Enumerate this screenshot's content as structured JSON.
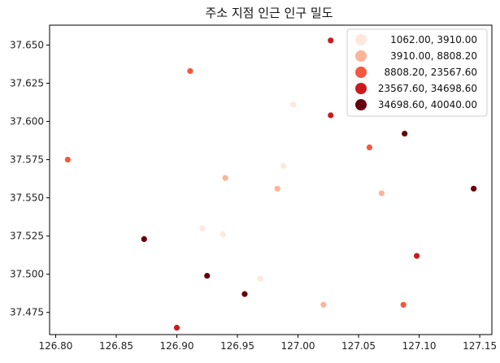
{
  "chart_data": {
    "type": "scatter",
    "title": "주소 지점 인근 인구 밀도",
    "xlabel": "",
    "ylabel": "",
    "xlim": [
      126.795,
      127.16
    ],
    "ylim": [
      37.4605,
      37.663
    ],
    "x_ticks": [
      "126.80",
      "126.85",
      "126.90",
      "126.95",
      "127.00",
      "127.05",
      "127.10",
      "127.15"
    ],
    "y_ticks": [
      "37.475",
      "37.500",
      "37.525",
      "37.550",
      "37.575",
      "37.600",
      "37.625",
      "37.650"
    ],
    "grid": false,
    "legend_position": "top-right",
    "legend": [
      {
        "label": "1062.00,   3910.00",
        "color": "#fee7dc"
      },
      {
        "label": "3910.00,   8808.20",
        "color": "#fcb499"
      },
      {
        "label": "8808.20, 23567.60",
        "color": "#f6573e"
      },
      {
        "label": "23567.60, 34698.60",
        "color": "#cb1b1e"
      },
      {
        "label": "34698.60, 40040.00",
        "color": "#67000d"
      }
    ],
    "points": [
      {
        "x": 127.027,
        "y": 37.653,
        "cls": 3
      },
      {
        "x": 126.911,
        "y": 37.633,
        "cls": 2
      },
      {
        "x": 126.996,
        "y": 37.611,
        "cls": 0
      },
      {
        "x": 127.027,
        "y": 37.604,
        "cls": 3
      },
      {
        "x": 127.088,
        "y": 37.592,
        "cls": 4
      },
      {
        "x": 127.059,
        "y": 37.583,
        "cls": 2
      },
      {
        "x": 126.81,
        "y": 37.575,
        "cls": 2
      },
      {
        "x": 126.988,
        "y": 37.571,
        "cls": 0
      },
      {
        "x": 126.94,
        "y": 37.563,
        "cls": 1
      },
      {
        "x": 126.983,
        "y": 37.556,
        "cls": 1
      },
      {
        "x": 127.145,
        "y": 37.556,
        "cls": 4
      },
      {
        "x": 127.069,
        "y": 37.553,
        "cls": 1
      },
      {
        "x": 126.921,
        "y": 37.53,
        "cls": 0
      },
      {
        "x": 126.938,
        "y": 37.526,
        "cls": 0
      },
      {
        "x": 126.873,
        "y": 37.523,
        "cls": 4
      },
      {
        "x": 127.098,
        "y": 37.512,
        "cls": 3
      },
      {
        "x": 126.925,
        "y": 37.499,
        "cls": 4
      },
      {
        "x": 126.969,
        "y": 37.497,
        "cls": 0
      },
      {
        "x": 126.956,
        "y": 37.487,
        "cls": 4
      },
      {
        "x": 127.021,
        "y": 37.48,
        "cls": 1
      },
      {
        "x": 127.087,
        "y": 37.48,
        "cls": 2
      },
      {
        "x": 126.9,
        "y": 37.465,
        "cls": 3
      }
    ]
  }
}
